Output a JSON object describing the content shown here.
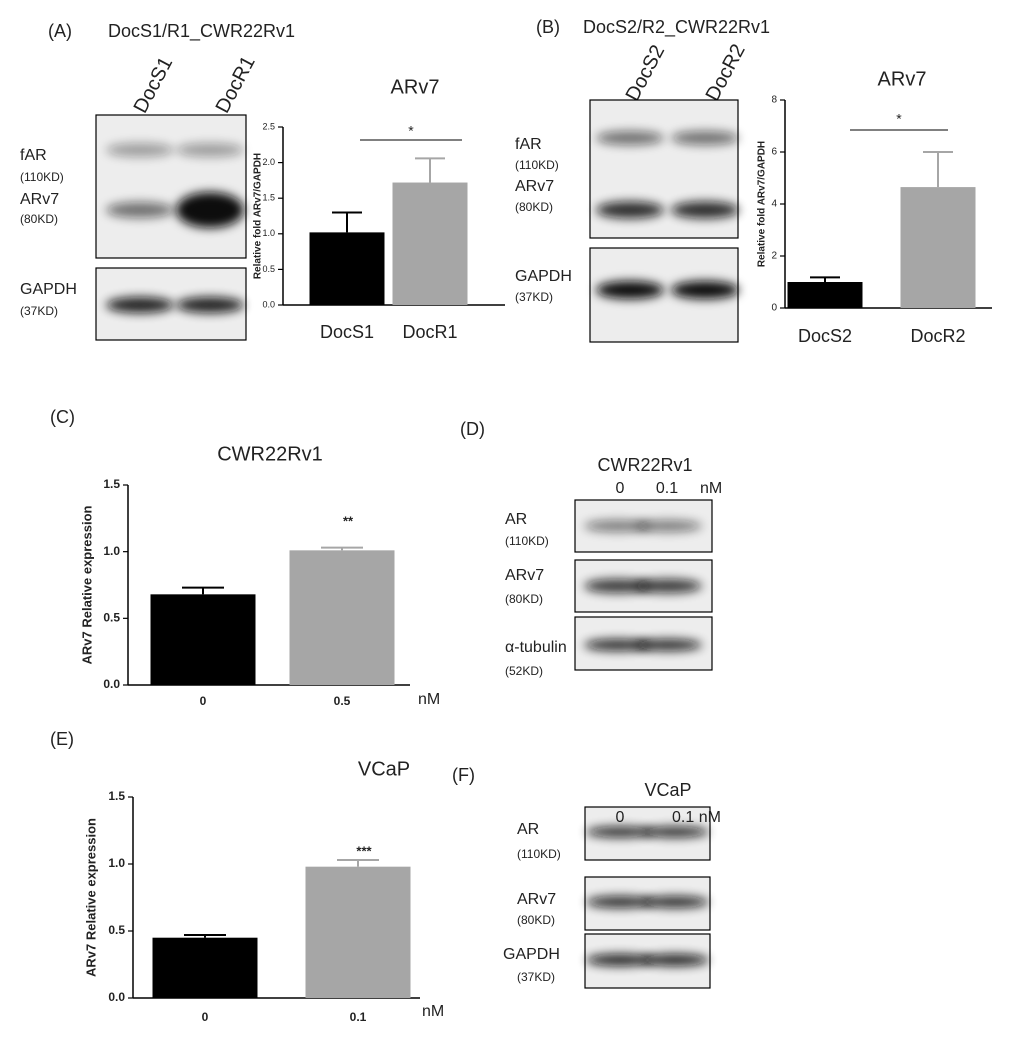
{
  "panels": {
    "A": {
      "label": "(A)",
      "title": "DocS1/R1_CWR22Rv1",
      "lanes": [
        "DocS1",
        "DocR1"
      ],
      "blot_labels": [
        "fAR",
        "(110KD)",
        "ARv7",
        "(80KD)",
        "GAPDH",
        "(37KD)"
      ]
    },
    "B": {
      "label": "(B)",
      "title": "DocS2/R2_CWR22Rv1",
      "lanes": [
        "DocS2",
        "DocR2"
      ],
      "blot_labels": [
        "fAR",
        "(110KD)",
        "ARv7",
        "(80KD)",
        "GAPDH",
        "(37KD)"
      ]
    },
    "C": {
      "label": "(C)"
    },
    "D": {
      "label": "(D)",
      "title": "CWR22Rv1",
      "lanes": [
        "0",
        "0.1"
      ],
      "unit": "nM",
      "blot_labels": [
        "AR",
        "(110KD)",
        "ARv7",
        "(80KD)",
        "α-tubulin",
        "(52KD)"
      ]
    },
    "E": {
      "label": "(E)"
    },
    "F": {
      "label": "(F)",
      "title": "VCaP",
      "lanes": [
        "0",
        "0.1 nM"
      ],
      "blot_labels": [
        "AR",
        "(110KD)",
        "ARv7",
        "(80KD)",
        "GAPDH",
        "(37KD)"
      ]
    }
  },
  "chart_data": [
    {
      "type": "bar",
      "title": "ARv7",
      "ylabel": "Relative fold ARv7/GAPDH",
      "categories": [
        "DocS1",
        "DocR1"
      ],
      "values": [
        1.02,
        1.72
      ],
      "errors": [
        0.28,
        0.34
      ],
      "colors": [
        "#000000",
        "#a6a6a6"
      ],
      "ylim": [
        0,
        2.5
      ],
      "yticks": [
        {
          "value": 0,
          "label": "0.0"
        },
        0.5,
        {
          "value": 1,
          "label": "1.0"
        },
        1.5,
        {
          "value": 2,
          "label": "2.0"
        },
        2.5
      ],
      "annotation": "*"
    },
    {
      "type": "bar",
      "title": "ARv7",
      "ylabel": "Relative fold ARv7/GAPDH",
      "categories": [
        "DocS2",
        "DocR2"
      ],
      "values": [
        1.0,
        4.65
      ],
      "errors": [
        0.18,
        1.35
      ],
      "colors": [
        "#000000",
        "#a6a6a6"
      ],
      "ylim": [
        0,
        8
      ],
      "yticks": [
        0,
        2,
        4,
        6,
        8
      ],
      "annotation": "*"
    },
    {
      "type": "bar",
      "title": "CWR22Rv1",
      "ylabel": "ARv7 Relative expression",
      "categories": [
        "0",
        "0.5"
      ],
      "x_unit": "nM",
      "values": [
        0.68,
        1.01
      ],
      "errors": [
        0.05,
        0.02
      ],
      "colors": [
        "#000000",
        "#a6a6a6"
      ],
      "ylim": [
        0,
        1.5
      ],
      "yticks": [
        {
          "value": 0,
          "label": "0.0"
        },
        0.5,
        {
          "value": 1,
          "label": "1.0"
        },
        1.5
      ],
      "annotation": "**"
    },
    {
      "type": "bar",
      "title": "VCaP",
      "ylabel": "ARv7 Relative expression",
      "categories": [
        "0",
        "0.1"
      ],
      "x_unit": "nM",
      "values": [
        0.45,
        0.98
      ],
      "errors": [
        0.02,
        0.05
      ],
      "colors": [
        "#000000",
        "#a6a6a6"
      ],
      "ylim": [
        0,
        1.5
      ],
      "yticks": [
        {
          "value": 0,
          "label": "0.0"
        },
        0.5,
        {
          "value": 1,
          "label": "1.0"
        },
        1.5
      ],
      "annotation": "***"
    }
  ]
}
